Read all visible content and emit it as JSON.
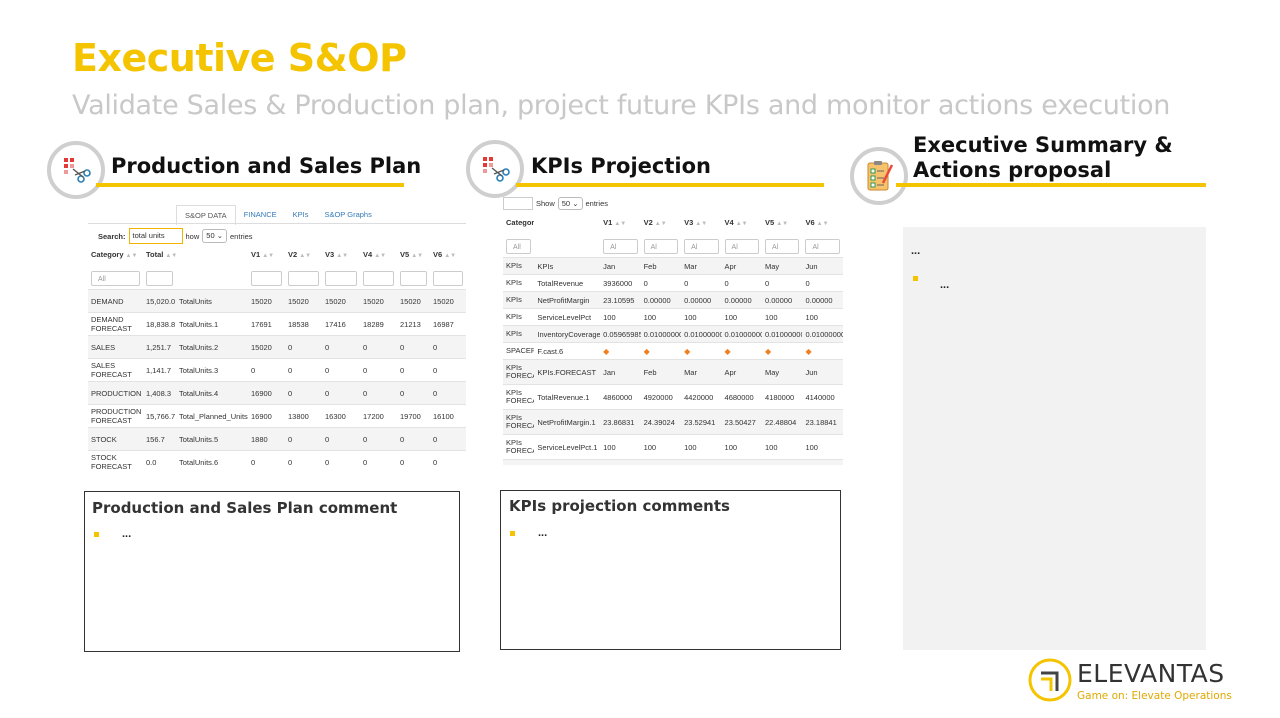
{
  "header": {
    "title": "Executive S&OP",
    "subtitle": "Validate Sales & Production plan, project future KPIs and monitor actions execution"
  },
  "sections": {
    "plan": {
      "title": "Production and Sales Plan",
      "icon": "chart-scissors-icon"
    },
    "kpis": {
      "title": "KPIs Projection",
      "icon": "chart-scissors-icon"
    },
    "summary": {
      "title_line1": "Executive Summary &",
      "title_line2": "Actions proposal",
      "icon": "checklist-icon"
    }
  },
  "plan_table": {
    "tabs": [
      "S&OP DATA",
      "FINANCE",
      "KPIs",
      "S&OP Graphs"
    ],
    "active_tab": 0,
    "search_label": "Search:",
    "search_value": "total units",
    "show_label": "how",
    "show_value": "50",
    "entries_label": "entries",
    "columns": [
      "Category",
      "Total",
      "",
      "V1",
      "V2",
      "V3",
      "V4",
      "V5",
      "V6"
    ],
    "filter_placeholder": "All",
    "rows": [
      [
        "DEMAND",
        "15,020.0",
        "TotalUnits",
        "15020",
        "15020",
        "15020",
        "15020",
        "15020",
        "15020"
      ],
      [
        "DEMAND FORECAST",
        "18,838.8",
        "TotalUnits.1",
        "17691",
        "18538",
        "17416",
        "18289",
        "21213",
        "16987"
      ],
      [
        "SALES",
        "1,251.7",
        "TotalUnits.2",
        "15020",
        "0",
        "0",
        "0",
        "0",
        "0"
      ],
      [
        "SALES FORECAST",
        "1,141.7",
        "TotalUnits.3",
        "0",
        "0",
        "0",
        "0",
        "0",
        "0"
      ],
      [
        "PRODUCTION",
        "1,408.3",
        "TotalUnits.4",
        "16900",
        "0",
        "0",
        "0",
        "0",
        "0"
      ],
      [
        "PRODUCTION FORECAST",
        "15,766.7",
        "Total_Planned_Units",
        "16900",
        "13800",
        "16300",
        "17200",
        "19700",
        "16100"
      ],
      [
        "STOCK",
        "156.7",
        "TotalUnits.5",
        "1880",
        "0",
        "0",
        "0",
        "0",
        "0"
      ],
      [
        "STOCK FORECAST",
        "0.0",
        "TotalUnits.6",
        "0",
        "0",
        "0",
        "0",
        "0",
        "0"
      ]
    ]
  },
  "kpi_table": {
    "show_label": "Show",
    "show_value": "50",
    "entries_label": "entries",
    "columns": [
      "Category",
      "",
      "V1",
      "V2",
      "V3",
      "V4",
      "V5",
      "V6"
    ],
    "filter_placeholder": "All",
    "filter_placeholder_short": "Al",
    "rows": [
      [
        "KPIs",
        "KPIs",
        "Jan",
        "Feb",
        "Mar",
        "Apr",
        "May",
        "Jun"
      ],
      [
        "KPIs",
        "TotalRevenue",
        "3936000",
        "0",
        "0",
        "0",
        "0",
        "0"
      ],
      [
        "KPIs",
        "NetProfitMargin",
        "23.10595",
        "0.00000",
        "0.00000",
        "0.00000",
        "0.00000",
        "0.00000"
      ],
      [
        "KPIs",
        "ServiceLevelPct",
        "100",
        "100",
        "100",
        "100",
        "100",
        "100"
      ],
      [
        "KPIs",
        "InventoryCoverage",
        "0.05965985",
        "0.01000000",
        "0.01000000",
        "0.01000000",
        "0.01000000",
        "0.01000000"
      ],
      [
        "SPACER",
        "F.cast.6",
        "◆",
        "◆",
        "◆",
        "◆",
        "◆",
        "◆"
      ],
      [
        "KPIs FORECA",
        "KPIs.FORECAST",
        "Jan",
        "Feb",
        "Mar",
        "Apr",
        "May",
        "Jun"
      ],
      [
        "KPIs FORECA",
        "TotalRevenue.1",
        "4860000",
        "4920000",
        "4420000",
        "4680000",
        "4180000",
        "4140000"
      ],
      [
        "KPIs FORECA",
        "NetProfitMargin.1",
        "23.86831",
        "24.39024",
        "23.52941",
        "23.50427",
        "22.48804",
        "23.18841"
      ],
      [
        "KPIs FORECA",
        "ServiceLevelPct.1",
        "100",
        "100",
        "100",
        "100",
        "100",
        "100"
      ],
      [
        "KPIs FORECA",
        "InventoryCoverage.1",
        "0.01",
        "0.01",
        "0.01",
        "0.01",
        "0.01",
        "0.01"
      ]
    ]
  },
  "comments": {
    "plan": {
      "title": "Production and Sales Plan comment",
      "bullet": "..."
    },
    "kpis": {
      "title": "KPIs projection comments",
      "bullet": "..."
    },
    "summary": {
      "line1": "...",
      "bullet": "..."
    }
  },
  "logo": {
    "name": "ELEVANTAS",
    "tagline": "Game on: Elevate Operations",
    "accent": "#f5c400"
  },
  "colors": {
    "accent": "#f5c400",
    "subtitle": "#c8c8c8",
    "link": "#337ab7"
  }
}
